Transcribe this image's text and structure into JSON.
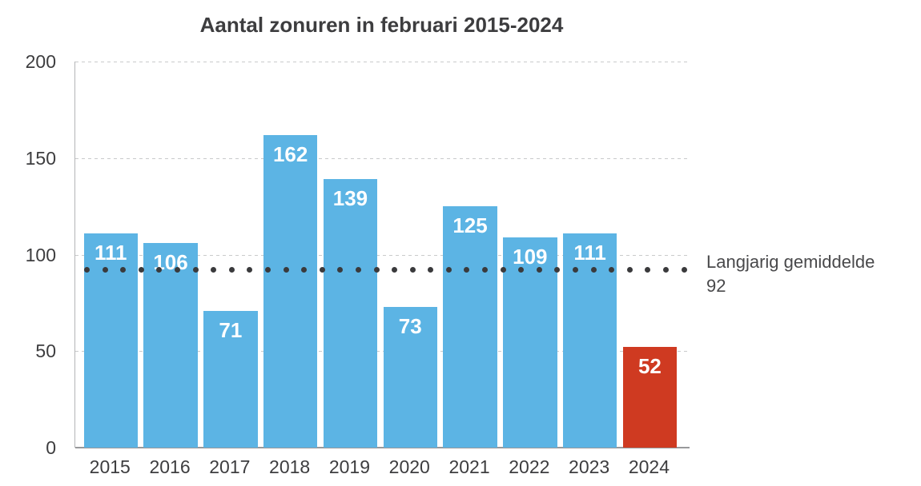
{
  "chart_data": {
    "type": "bar",
    "title": "Aantal zonuren in februari 2015-2024",
    "categories": [
      "2015",
      "2016",
      "2017",
      "2018",
      "2019",
      "2020",
      "2021",
      "2022",
      "2023",
      "2024"
    ],
    "values": [
      111,
      106,
      71,
      162,
      139,
      73,
      125,
      109,
      111,
      52
    ],
    "xlabel": "",
    "ylabel": "",
    "ylim": [
      0,
      200
    ],
    "yticks": [
      0,
      50,
      100,
      150,
      200
    ],
    "grid": "horizontal dashed gridlines at 50/100/150/200, solid gray baseline at 0, light gray left axis line",
    "legend_position": "none",
    "highlight_category": "2024",
    "colors": {
      "bar": "#5cb4e4",
      "bar_highlight": "#cf3a21",
      "average_dot": "#3a3a3c",
      "title_text": "#3d3d3f",
      "axis_text": "#3d3d3f",
      "annotation_text": "#49494b",
      "bar_value_text": "#ffffff"
    },
    "average_line": {
      "value": 92,
      "style": "dotted",
      "label": "Langjarig gemiddelde",
      "value_label": "92"
    }
  }
}
